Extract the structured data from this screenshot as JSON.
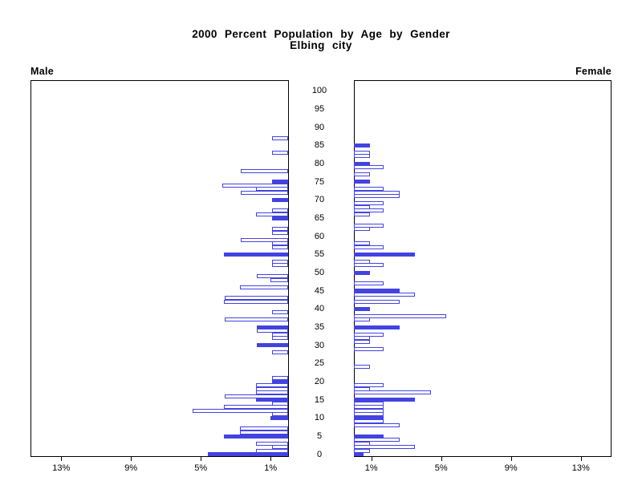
{
  "title": {
    "line1": "2000 Percent Population by Age by Gender",
    "line2": "Elbing city"
  },
  "chart_data": {
    "type": "bar",
    "subtype": "population-pyramid",
    "left_panel_label": "Male",
    "right_panel_label": "Female",
    "age_axis": {
      "min": 0,
      "max": 100,
      "label_step": 5,
      "tick_labels": [
        "0",
        "5",
        "10",
        "15",
        "20",
        "25",
        "30",
        "35",
        "40",
        "45",
        "50",
        "55",
        "60",
        "65",
        "70",
        "75",
        "80",
        "85",
        "90",
        "95",
        "100"
      ]
    },
    "pct_axis": {
      "male_tick_labels": [
        "13%",
        "9%",
        "5%",
        "1%"
      ],
      "male_tick_values": [
        13,
        9,
        5,
        1
      ],
      "female_tick_labels": [
        "1%",
        "5%",
        "9%",
        "13%"
      ],
      "female_tick_values": [
        1,
        5,
        9,
        13
      ],
      "axis_max_pct": 14.8
    },
    "highlight_rule": "bars for ages divisible by 5 are solid filled; other ages are white with outline",
    "male_pct_by_age": [
      4.6,
      1.85,
      0.9,
      1.85,
      0,
      3.7,
      2.75,
      2.75,
      0,
      0,
      1.0,
      0.9,
      5.45,
      3.7,
      0.9,
      1.85,
      3.65,
      1.85,
      1.85,
      1.85,
      0.9,
      0.9,
      0,
      0,
      0,
      0,
      0,
      0,
      0.9,
      0,
      1.8,
      0,
      0.9,
      0.9,
      1.8,
      1.8,
      0,
      3.65,
      0,
      0.9,
      0,
      0,
      3.7,
      3.65,
      0,
      0,
      2.75,
      0,
      1.0,
      1.8,
      0,
      0,
      0.9,
      0.9,
      0,
      3.7,
      0,
      0.9,
      0.9,
      2.7,
      0,
      0.9,
      0.9,
      0,
      0,
      0.9,
      1.85,
      0.9,
      0,
      0,
      0.9,
      0,
      2.7,
      1.85,
      3.75,
      0.9,
      0,
      0,
      2.7,
      0,
      0,
      0,
      0,
      0.9,
      0,
      0,
      0,
      0.9,
      0,
      0,
      0,
      0,
      0,
      0,
      0,
      0,
      0,
      0,
      0,
      0,
      0
    ],
    "female_pct_by_age": [
      0.55,
      0.9,
      3.5,
      0.9,
      2.6,
      1.7,
      0,
      0,
      2.6,
      1.7,
      1.7,
      1.7,
      1.7,
      1.7,
      1.7,
      3.5,
      0,
      4.4,
      0.9,
      1.7,
      0,
      0,
      0,
      0,
      0.9,
      0,
      0,
      0,
      0,
      1.7,
      0,
      0.9,
      0.9,
      1.7,
      0,
      2.6,
      0,
      0.9,
      5.3,
      0,
      0.9,
      0,
      2.6,
      0,
      3.5,
      2.6,
      0,
      1.7,
      0,
      0,
      0.9,
      0,
      1.7,
      0.9,
      0,
      3.5,
      0,
      1.7,
      0.9,
      0,
      0,
      0,
      0.9,
      1.7,
      0,
      0,
      0.9,
      1.7,
      0.9,
      1.7,
      0,
      2.6,
      2.6,
      1.7,
      0,
      0.9,
      0,
      0.9,
      0,
      1.7,
      0.9,
      0,
      0.9,
      0.9,
      0,
      0.9,
      0,
      0,
      0,
      0,
      0,
      0,
      0,
      0,
      0,
      0,
      0,
      0,
      0,
      0,
      0
    ],
    "colors": {
      "bar_blue": "#4343e2",
      "bar_white_fill": "#ffffff",
      "axis": "#000000",
      "background": "#ffffff"
    }
  }
}
